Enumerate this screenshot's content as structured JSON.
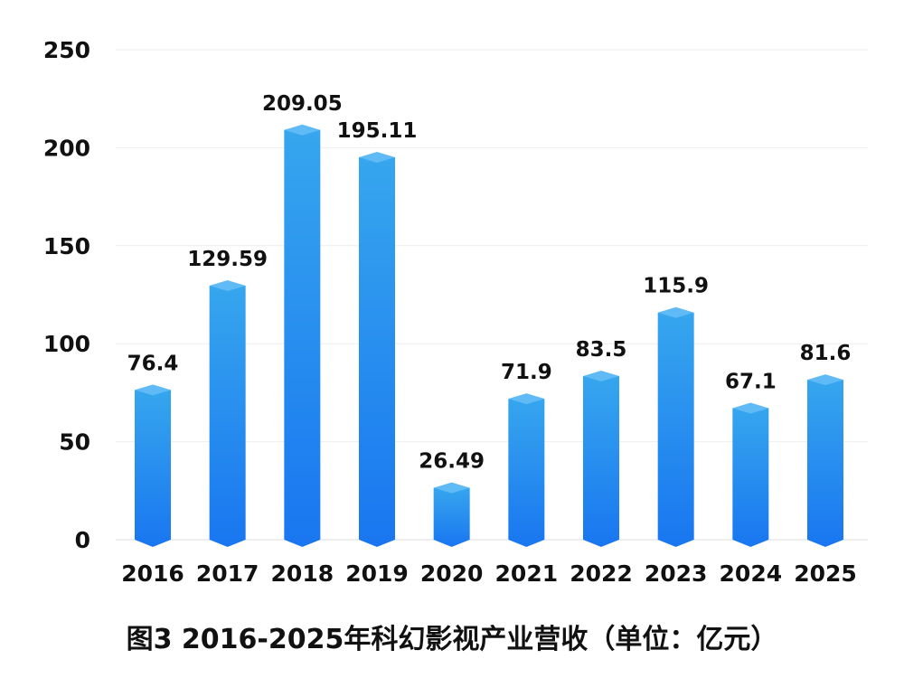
{
  "chart_data": {
    "type": "bar",
    "title": "图3 2016-2025年科幻影视产业营收（单位：亿元）",
    "categories": [
      "2016",
      "2017",
      "2018",
      "2019",
      "2020",
      "2021",
      "2022",
      "2023",
      "2024",
      "2025"
    ],
    "values": [
      76.4,
      129.59,
      209.05,
      195.11,
      26.49,
      71.9,
      83.5,
      115.9,
      67.1,
      81.6
    ],
    "data_labels": [
      "76.4",
      "129.59",
      "209.05",
      "195.11",
      "26.49",
      "71.9",
      "83.5",
      "115.9",
      "67.1",
      "81.6"
    ],
    "yticks": [
      "0",
      "50",
      "100",
      "150",
      "200",
      "250"
    ],
    "ylim": [
      0,
      250
    ],
    "grid": true,
    "legend": "none",
    "colors": {
      "bar_top": "#36a6ee",
      "bar_bottom": "#1976f0",
      "cap": "#5fbaf5",
      "grid": "#eeeeee"
    }
  }
}
